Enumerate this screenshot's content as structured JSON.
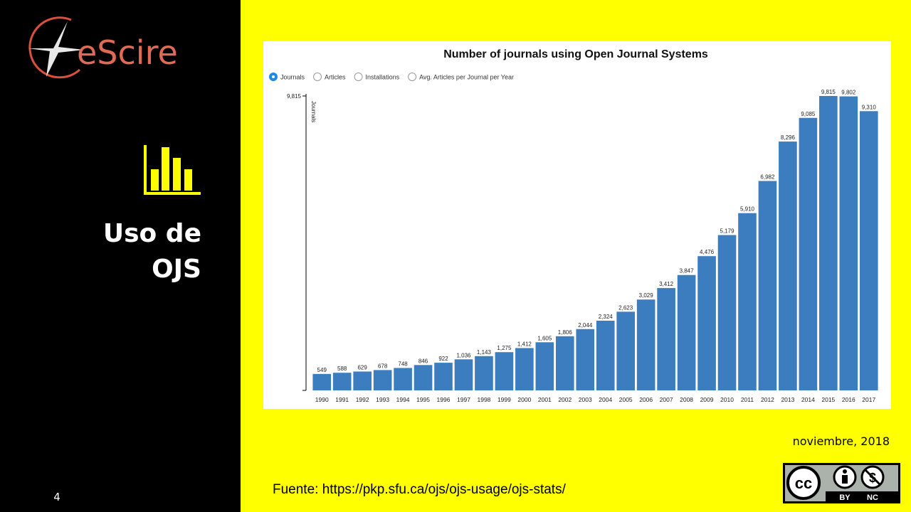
{
  "slide": {
    "logo": "eScire",
    "heading": [
      "Uso de",
      "OJS"
    ],
    "page_number": "4",
    "date": "noviembre, 2018",
    "source": "Fuente: https://pkp.sfu.ca/ojs/ojs-usage/ojs-stats/",
    "license": {
      "icon": "cc",
      "by": "BY",
      "nc": "NC"
    }
  },
  "chart_data": {
    "type": "bar",
    "title": "Number of journals using Open Journal Systems",
    "options": [
      "Journals",
      "Articles",
      "Installations",
      "Avg. Articles per Journal per Year"
    ],
    "y_label": "Journals",
    "categories": [
      "1990",
      "1991",
      "1992",
      "1993",
      "1994",
      "1995",
      "1996",
      "1997",
      "1998",
      "1999",
      "2000",
      "2001",
      "2002",
      "2003",
      "2004",
      "2005",
      "2006",
      "2007",
      "2008",
      "2009",
      "2010",
      "2011",
      "2012",
      "2013",
      "2014",
      "2015",
      "2016",
      "2017"
    ],
    "values": [
      549,
      588,
      629,
      678,
      748,
      846,
      922,
      1036,
      1143,
      1275,
      1412,
      1605,
      1806,
      2044,
      2324,
      2623,
      3029,
      3412,
      3847,
      4476,
      5179,
      5910,
      6982,
      8296,
      9085,
      9815,
      9802,
      9310
    ],
    "value_labels": [
      "549",
      "588",
      "629",
      "678",
      "748",
      "846",
      "922",
      "1,036",
      "1,143",
      "1,275",
      "1,412",
      "1,605",
      "1,806",
      "2,044",
      "2,324",
      "2,623",
      "3,029",
      "3,412",
      "3,847",
      "4,476",
      "5,179",
      "5,910",
      "6,982",
      "8,296",
      "9,085",
      "9,815",
      "9,802",
      "9,310"
    ],
    "color": "#3b7dbf",
    "ylim": [
      0,
      9815
    ],
    "yticks": [
      {
        "value": 9815,
        "label": "9,815"
      }
    ],
    "grid": false
  }
}
